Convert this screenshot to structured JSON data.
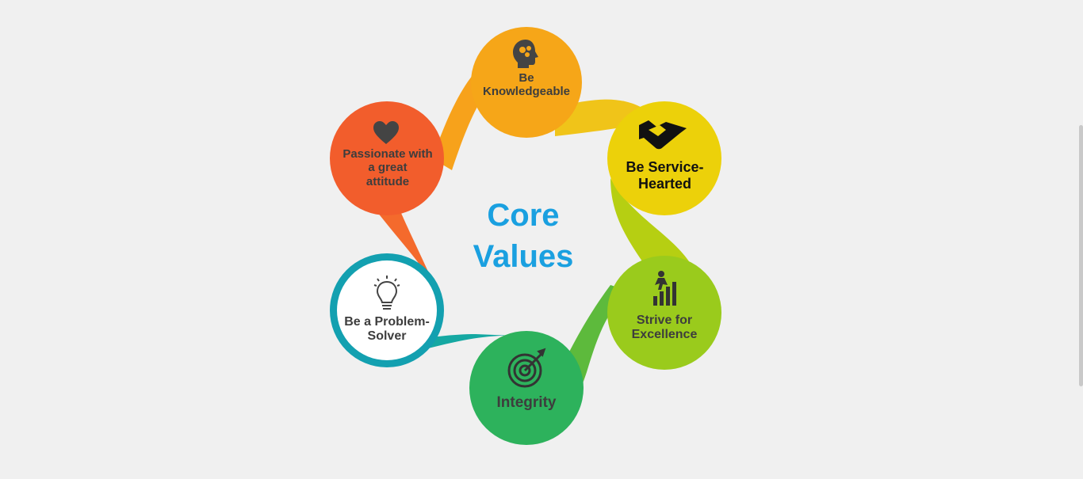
{
  "title": "Core\nValues",
  "values": [
    {
      "label": "Be\nKnowledgeable",
      "color": "#f6a618",
      "text_color": "#3d3d3d",
      "icon": "brain-head-icon"
    },
    {
      "label": "Be Service-\nHearted",
      "color": "#ecd10a",
      "text_color": "#111111",
      "icon": "handshake-icon"
    },
    {
      "label": "Strive for\nExcellence",
      "color": "#9acb1c",
      "text_color": "#3d3d3d",
      "icon": "climbing-growth-icon"
    },
    {
      "label": "Integrity",
      "color": "#2db25c",
      "text_color": "#3d3d3d",
      "icon": "target-icon"
    },
    {
      "label": "Be a Problem-\nSolver",
      "color": "#13a0b0",
      "text_color": "#3d3d3d",
      "icon": "lightbulb-icon"
    },
    {
      "label": "Passionate with\na great\nattitude",
      "color": "#f25d2c",
      "text_color": "#3d3d3d",
      "icon": "heart-icon"
    }
  ],
  "colors": {
    "title": "#1aa0e0",
    "background": "#f0f0f0",
    "problem_solver_fill": "#ffffff"
  }
}
